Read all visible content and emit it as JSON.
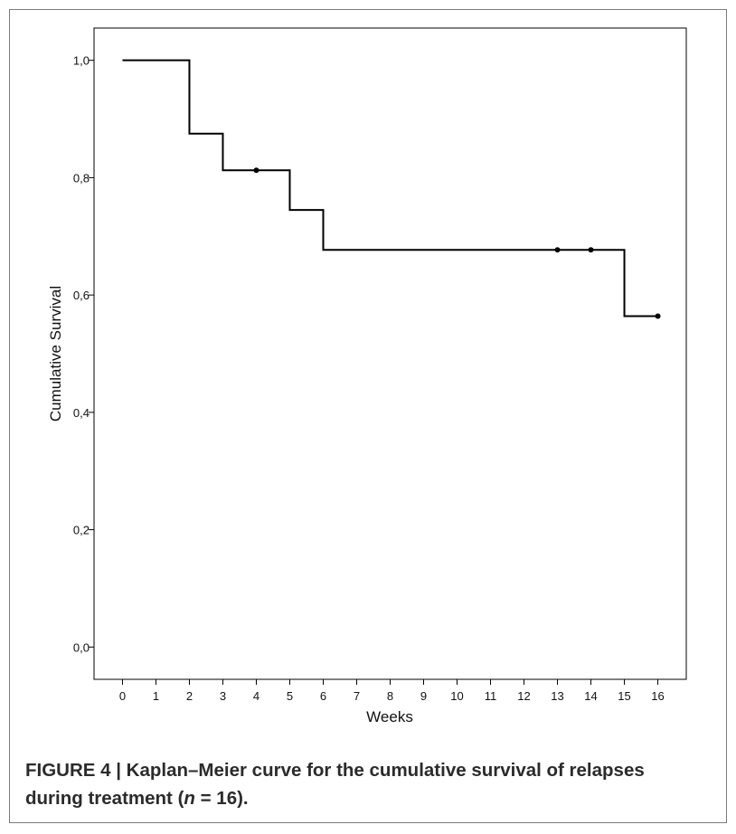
{
  "chart_data": {
    "type": "line",
    "step": true,
    "xlabel": "Weeks",
    "ylabel": "Cumulative Survival",
    "xlim": [
      -0.85,
      16.85
    ],
    "ylim": [
      -0.055,
      1.055
    ],
    "x_ticks": [
      0,
      1,
      2,
      3,
      4,
      5,
      6,
      7,
      8,
      9,
      10,
      11,
      12,
      13,
      14,
      15,
      16
    ],
    "x_tick_labels": [
      "0",
      "1",
      "2",
      "3",
      "4",
      "5",
      "6",
      "7",
      "8",
      "9",
      "10",
      "11",
      "12",
      "13",
      "14",
      "15",
      "16"
    ],
    "y_ticks": [
      0,
      0.2,
      0.4,
      0.6,
      0.8,
      1.0
    ],
    "y_tick_labels": [
      "0,0",
      "0,2",
      "0,4",
      "0,6",
      "0,8",
      "1,0"
    ],
    "grid": false,
    "legend": "none",
    "series": [
      {
        "steps": [
          {
            "x": 0,
            "y": 1.0
          },
          {
            "x": 2,
            "y": 0.875
          },
          {
            "x": 3,
            "y": 0.8125
          },
          {
            "x": 5,
            "y": 0.745
          },
          {
            "x": 6,
            "y": 0.677
          },
          {
            "x": 15,
            "y": 0.564
          },
          {
            "x": 16,
            "y": 0.564
          }
        ],
        "censored": [
          {
            "x": 4,
            "y": 0.8125
          },
          {
            "x": 13,
            "y": 0.677
          },
          {
            "x": 14,
            "y": 0.677
          },
          {
            "x": 16,
            "y": 0.564
          }
        ]
      }
    ],
    "colors": {
      "line": "#000000",
      "axis": "#000000"
    }
  },
  "caption": {
    "label": "FIGURE 4 | Kaplan–Meier curve for the cumulative survival of relapses",
    "line2_prefix": "during treatment (",
    "n_symbol": "n",
    "line2_suffix": " = 16)."
  }
}
